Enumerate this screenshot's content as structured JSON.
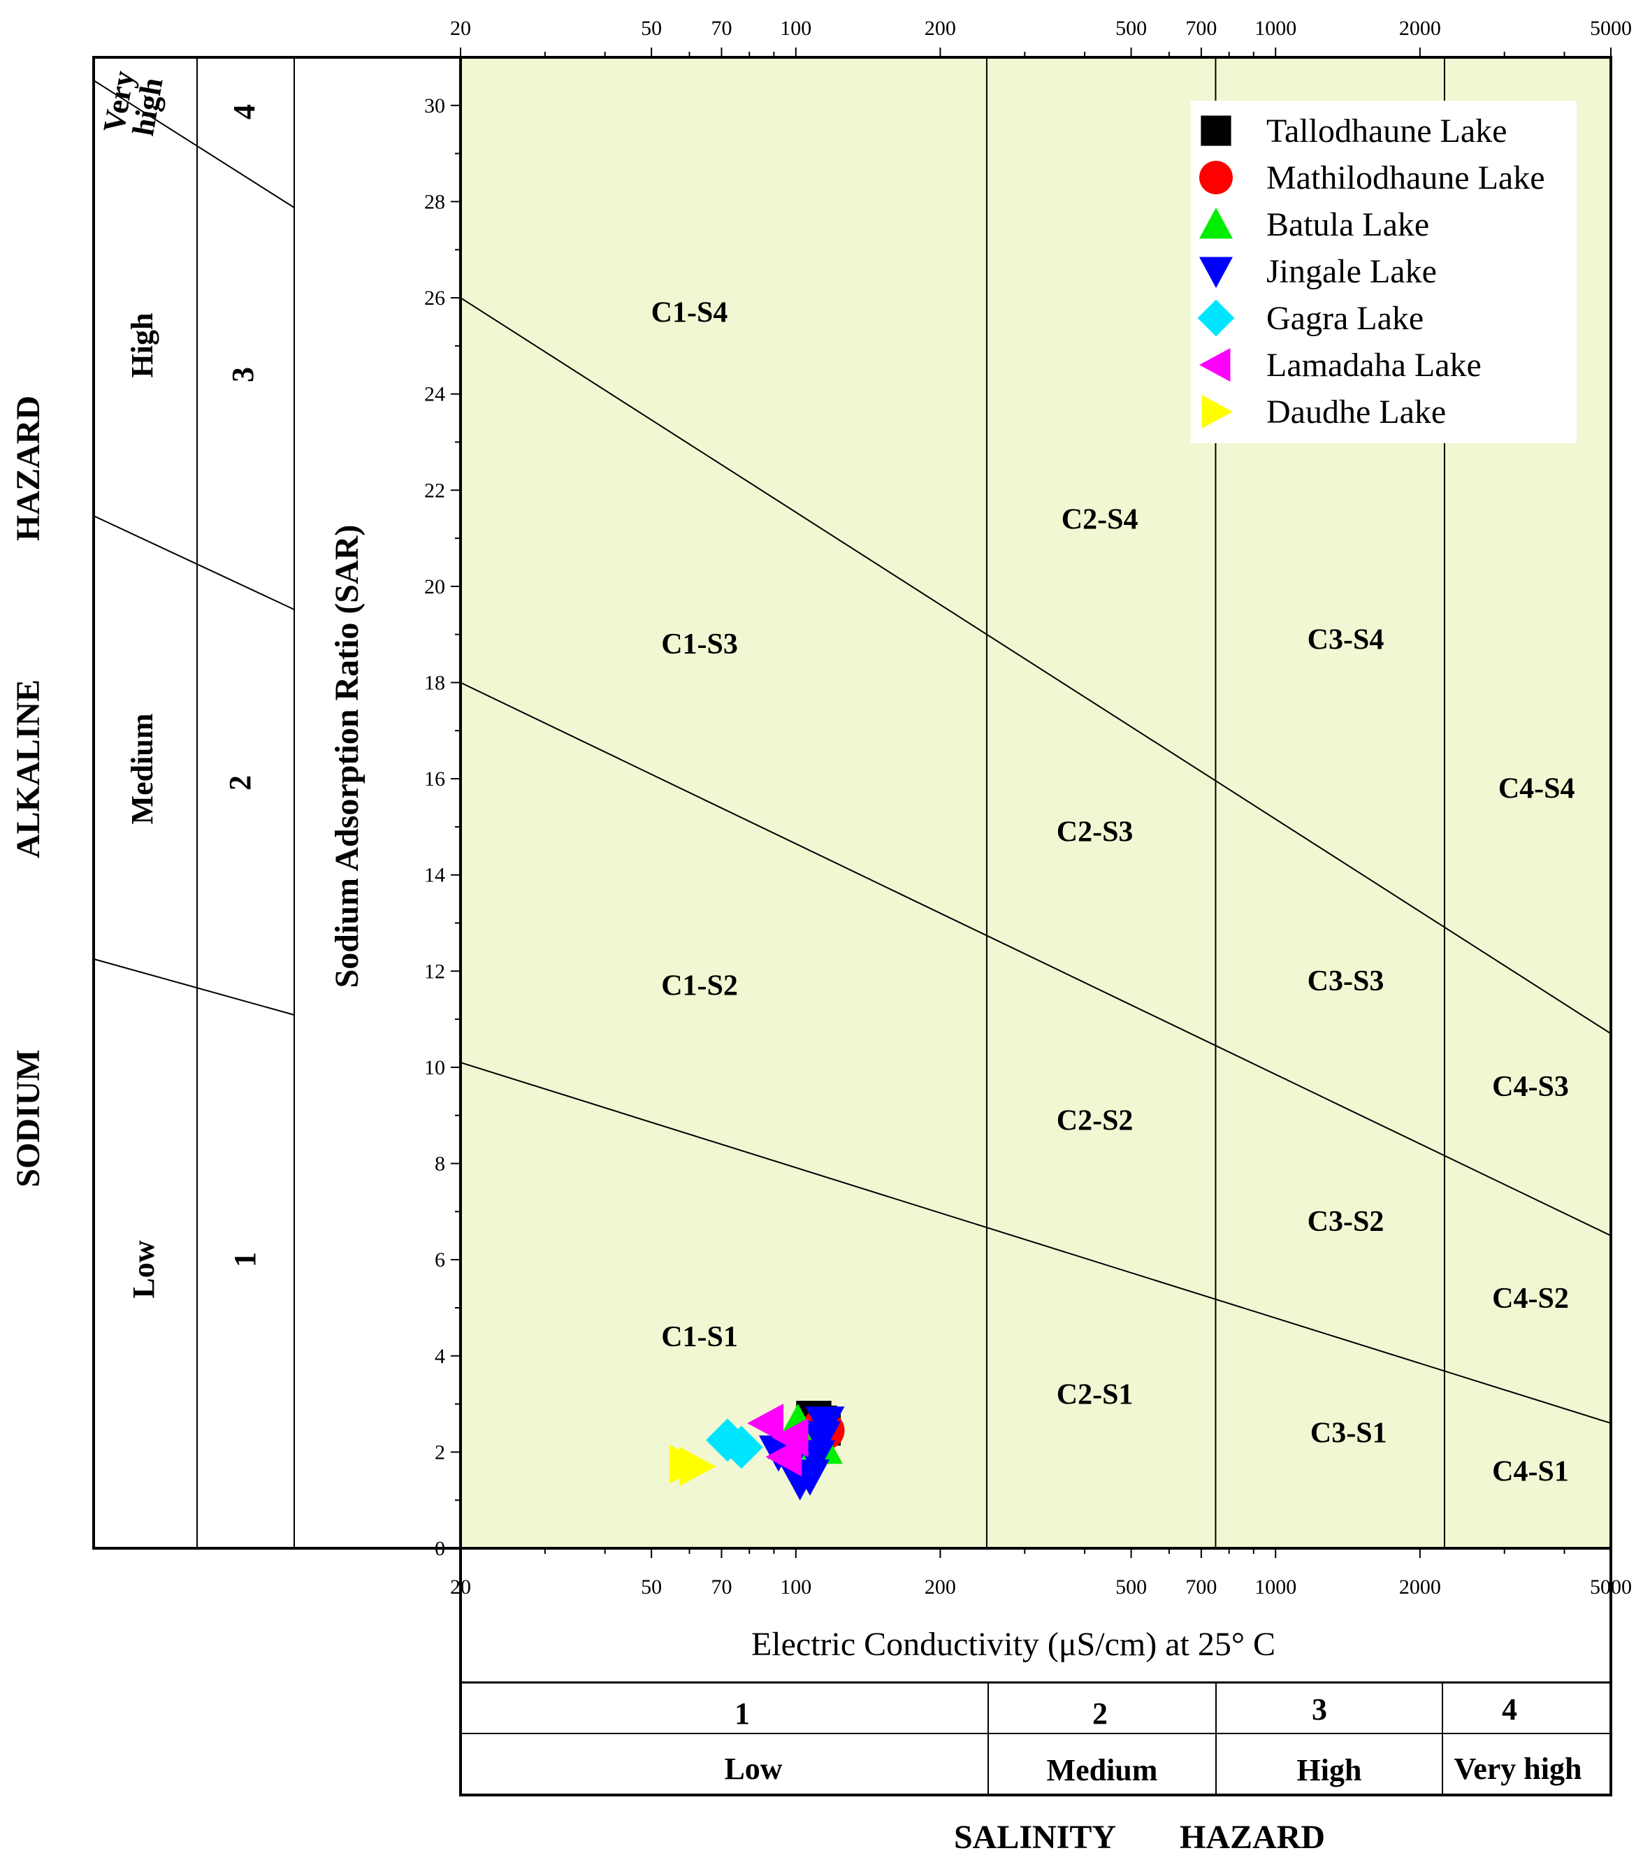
{
  "chart_data": {
    "type": "scatter",
    "x_scale": "log",
    "xlim": [
      20,
      5000
    ],
    "ylim": [
      0,
      31
    ],
    "grid": false,
    "legend_position": "top-right",
    "xlabel": "Electric Conductivity (μS/cm) at 25° C",
    "ylabel": "Sodium Adsorption Ratio (SAR)",
    "x_ticks": [
      20,
      50,
      70,
      100,
      200,
      500,
      700,
      1000,
      2000,
      5000
    ],
    "x_ticks_bottom": [
      20,
      50,
      70,
      100,
      200,
      500,
      700,
      1000,
      2000,
      5000
    ],
    "y_ticks": [
      0,
      2,
      4,
      6,
      8,
      10,
      12,
      14,
      16,
      18,
      20,
      22,
      24,
      26,
      28,
      30
    ],
    "salinity_boundaries": [
      250,
      750,
      2250
    ],
    "sar_lines": [
      {
        "at_20": 10.1,
        "at_5000": 2.6
      },
      {
        "at_20": 18.0,
        "at_5000": 6.5
      },
      {
        "at_20": 26.0,
        "at_5000": 10.7
      }
    ],
    "zones": [
      {
        "label": "C1-S4",
        "x": 60,
        "y": 25.5
      },
      {
        "label": "C1-S3",
        "x": 63,
        "y": 18.6
      },
      {
        "label": "C1-S2",
        "x": 63,
        "y": 11.5
      },
      {
        "label": "C1-S1",
        "x": 63,
        "y": 4.2
      },
      {
        "label": "C2-S4",
        "x": 430,
        "y": 21.2
      },
      {
        "label": "C2-S3",
        "x": 420,
        "y": 14.7
      },
      {
        "label": "C2-S2",
        "x": 420,
        "y": 8.7
      },
      {
        "label": "C2-S1",
        "x": 420,
        "y": 3.0
      },
      {
        "label": "C3-S4",
        "x": 1400,
        "y": 18.7
      },
      {
        "label": "C3-S3",
        "x": 1400,
        "y": 11.6
      },
      {
        "label": "C3-S2",
        "x": 1400,
        "y": 6.6
      },
      {
        "label": "C3-S1",
        "x": 1420,
        "y": 2.2
      },
      {
        "label": "C4-S4",
        "x": 3500,
        "y": 15.6
      },
      {
        "label": "C4-S3",
        "x": 3400,
        "y": 9.4
      },
      {
        "label": "C4-S2",
        "x": 3400,
        "y": 5.0
      },
      {
        "label": "C4-S1",
        "x": 3400,
        "y": 1.4
      }
    ],
    "series": [
      {
        "name": "Tallodhaune Lake",
        "marker": "square",
        "color": "#000000",
        "points": [
          [
            109,
            2.7
          ],
          [
            112,
            2.6
          ],
          [
            114,
            2.5
          ]
        ]
      },
      {
        "name": "Mathilodhaune Lake",
        "marker": "circle",
        "color": "#ff0000",
        "points": [
          [
            113,
            2.5
          ],
          [
            115,
            2.45
          ]
        ]
      },
      {
        "name": "Batula Lake",
        "marker": "triangle-up",
        "color": "#00ee00",
        "points": [
          [
            96,
            2.2
          ],
          [
            101,
            2.6
          ],
          [
            114,
            2.1
          ]
        ]
      },
      {
        "name": "Jingale Lake",
        "marker": "triangle-down",
        "color": "#0000ff",
        "points": [
          [
            92,
            2.0
          ],
          [
            97,
            1.8
          ],
          [
            102,
            1.4
          ],
          [
            107,
            1.5
          ],
          [
            110,
            1.9
          ],
          [
            113,
            2.3
          ],
          [
            115,
            2.6
          ]
        ]
      },
      {
        "name": "Gagra Lake",
        "marker": "diamond",
        "color": "#00e5ff",
        "points": [
          [
            72,
            2.25
          ],
          [
            77,
            2.1
          ]
        ]
      },
      {
        "name": "Lamadaha Lake",
        "marker": "triangle-left",
        "color": "#ff00ff",
        "points": [
          [
            87,
            2.6
          ],
          [
            98,
            2.3
          ],
          [
            95,
            1.9
          ]
        ]
      },
      {
        "name": "Daudhe Lake",
        "marker": "triangle-right",
        "color": "#ffff00",
        "points": [
          [
            59,
            1.75
          ],
          [
            62,
            1.7
          ]
        ]
      }
    ]
  },
  "left_panel": {
    "hazard_title": "SODIUM ALKALINE HAZARD",
    "title_words": [
      "SODIUM",
      "ALKALINE",
      "HAZARD"
    ],
    "classes": [
      {
        "name": "Low",
        "num": "1"
      },
      {
        "name": "Medium",
        "num": "2"
      },
      {
        "name": "High",
        "num": "3"
      },
      {
        "name": "Very high",
        "num": "4"
      }
    ]
  },
  "bottom_panel": {
    "hazard_title": "SALINITY HAZARD",
    "title_words": [
      "SALINITY",
      "HAZARD"
    ],
    "classes": [
      {
        "name": "Low",
        "num": "1"
      },
      {
        "name": "Medium",
        "num": "2"
      },
      {
        "name": "High",
        "num": "3"
      },
      {
        "name": "Very high",
        "num": "4"
      }
    ]
  },
  "colors": {
    "plot_background": "#f1f7d2",
    "line": "#000000"
  }
}
